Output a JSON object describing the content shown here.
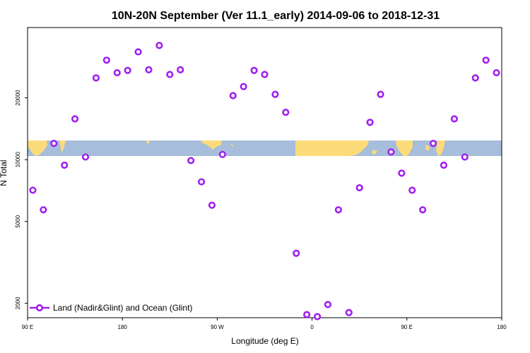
{
  "chart_data": {
    "type": "scatter",
    "title": "10N-20N September (Ver 11.1_early)   2014-09-06 to 2018-12-31",
    "xlabel": "Longitude (deg E)",
    "ylabel": "N Total",
    "y_scale": "log",
    "ylim": [
      1700,
      44000
    ],
    "x_ticks": [
      {
        "value": 90,
        "label": "90 E"
      },
      {
        "value": 180,
        "label": "180"
      },
      {
        "value": 270,
        "label": "90 W"
      },
      {
        "value": 360,
        "label": "0"
      },
      {
        "value": 450,
        "label": "90 E"
      },
      {
        "value": 540,
        "label": "180"
      }
    ],
    "y_ticks": [
      {
        "value": 2000,
        "label": "2000"
      },
      {
        "value": 5000,
        "label": "5000"
      },
      {
        "value": 10000,
        "label": "10000"
      },
      {
        "value": 20000,
        "label": "20000"
      }
    ],
    "xlim": [
      90,
      540
    ],
    "legend": {
      "position": "bottom-left",
      "entries": [
        {
          "label": "Land (Nadir&Glint) and Ocean (Glint)",
          "color": "#a020f0"
        }
      ]
    },
    "series": [
      {
        "name": "Land (Nadir&Glint) and Ocean (Glint)",
        "color": "#a020f0",
        "x": [
          95,
          105,
          115,
          125,
          135,
          145,
          155,
          165,
          175,
          185,
          195,
          205,
          215,
          225,
          235,
          245,
          255,
          265,
          275,
          285,
          295,
          305,
          315,
          325,
          335,
          345,
          355,
          365,
          375,
          385,
          395,
          405,
          415,
          425,
          435,
          445,
          455,
          465,
          475,
          485,
          495,
          505,
          515,
          525,
          535
        ],
        "y": [
          7100,
          5700,
          12000,
          9400,
          15800,
          10300,
          25000,
          30500,
          26500,
          27200,
          33500,
          27400,
          36000,
          26000,
          27400,
          9900,
          7800,
          6000,
          10600,
          20500,
          22700,
          27200,
          26000,
          20800,
          17000,
          3500,
          1760,
          1720,
          1970,
          5700,
          1800,
          7300,
          15200,
          20800,
          10900,
          8600,
          7100,
          5700,
          12000,
          9400,
          15800,
          10300,
          25000,
          30500,
          26500
        ]
      }
    ]
  }
}
